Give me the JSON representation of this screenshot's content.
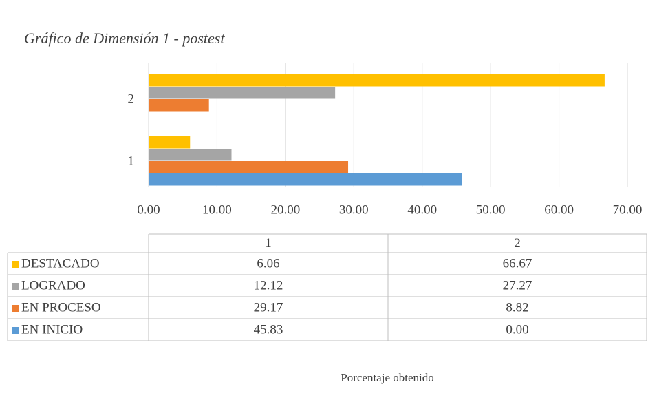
{
  "chart_data": {
    "type": "bar",
    "orientation": "horizontal",
    "title": "Gráfico de Dimensión 1 - postest",
    "x_axis_label": "Porcentaje obtenido",
    "categories": [
      "1",
      "2"
    ],
    "series": [
      {
        "name": "EN INICIO",
        "color": "#5b9bd5",
        "values": [
          45.83,
          0
        ],
        "value_labels": [
          "45.83",
          "0.00"
        ]
      },
      {
        "name": "EN PROCESO",
        "color": "#ed7d31",
        "values": [
          29.17,
          8.82
        ]
      },
      {
        "name": "LOGRADO",
        "color": "#a5a5a5",
        "values": [
          12.12,
          27.27
        ]
      },
      {
        "name": "DESTACADO",
        "color": "#ffc000",
        "values": [
          6.06,
          66.67
        ]
      }
    ],
    "xlim": [
      0,
      70
    ],
    "xticks": [
      {
        "value": 0,
        "label": "0.00"
      },
      {
        "value": 10,
        "label": "10.00"
      },
      {
        "value": 20,
        "label": "20.00"
      },
      {
        "value": 30,
        "label": "30.00"
      },
      {
        "value": 40,
        "label": "40.00"
      },
      {
        "value": 50,
        "label": "50.00"
      },
      {
        "value": 60,
        "label": "60.00"
      },
      {
        "value": 70,
        "label": "70.00"
      }
    ],
    "grid": true,
    "data_table": true
  }
}
